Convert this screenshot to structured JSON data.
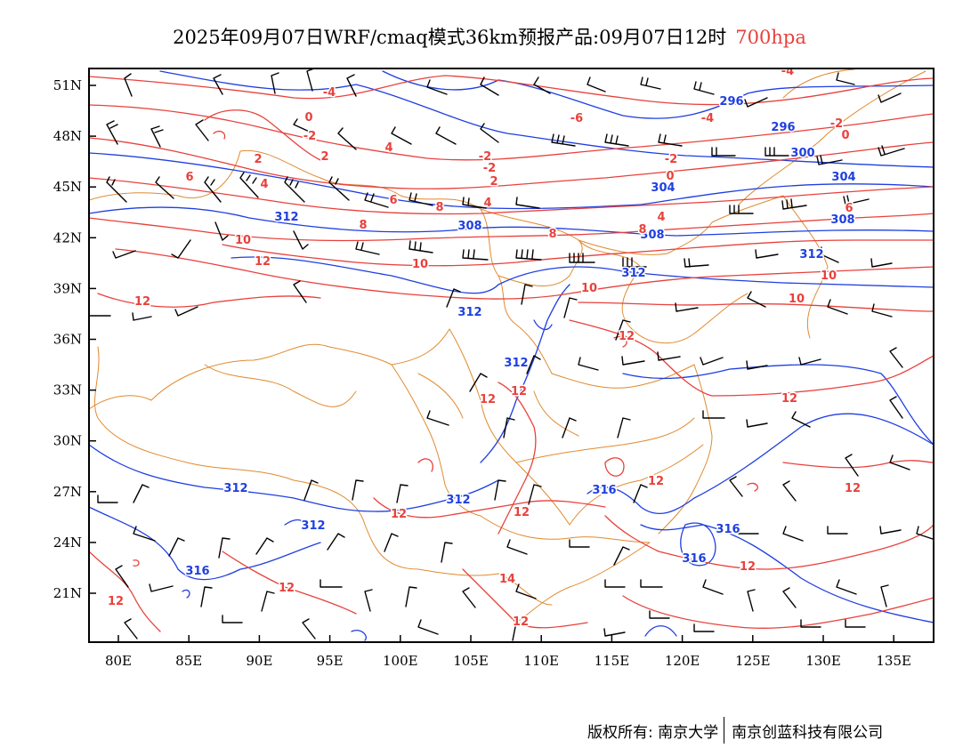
{
  "header": {
    "title": "2025年09月07日WRF/cmaq模式36km预报产品:09月07日12时",
    "level": "700hpa"
  },
  "map": {
    "lon_ticks": [
      "80E",
      "85E",
      "90E",
      "95E",
      "100E",
      "105E",
      "110E",
      "115E",
      "120E",
      "125E",
      "130E",
      "135E"
    ],
    "lat_ticks": [
      "51N",
      "48N",
      "45N",
      "42N",
      "39N",
      "36N",
      "33N",
      "30N",
      "27N",
      "24N",
      "21N"
    ],
    "height_color": "#1f3fe0",
    "temperature_color": "#e8413c",
    "boundary_color": "#e08a2e",
    "barb_color": "#000000",
    "height_labels": [
      "296",
      "296",
      "300",
      "304",
      "304",
      "308",
      "308",
      "308",
      "312",
      "312",
      "312",
      "312",
      "312",
      "312",
      "312",
      "312",
      "316",
      "316",
      "316",
      "316"
    ],
    "temperature_labels": [
      "-4",
      "-4",
      "-6",
      "-4",
      "-2",
      "-2",
      "0",
      "0",
      "-2",
      "-2",
      "-2",
      "0",
      "2",
      "2",
      "2",
      "4",
      "4",
      "4",
      "4",
      "6",
      "6",
      "6",
      "8",
      "8",
      "8",
      "8",
      "10",
      "10",
      "10",
      "10",
      "10",
      "12",
      "12",
      "12",
      "12",
      "12",
      "12",
      "12",
      "12",
      "12",
      "12",
      "12",
      "12",
      "12",
      "14",
      "12"
    ]
  },
  "footer": {
    "copyright": "版权所有: 南京大学",
    "company": "南京创蓝科技有限公司"
  }
}
